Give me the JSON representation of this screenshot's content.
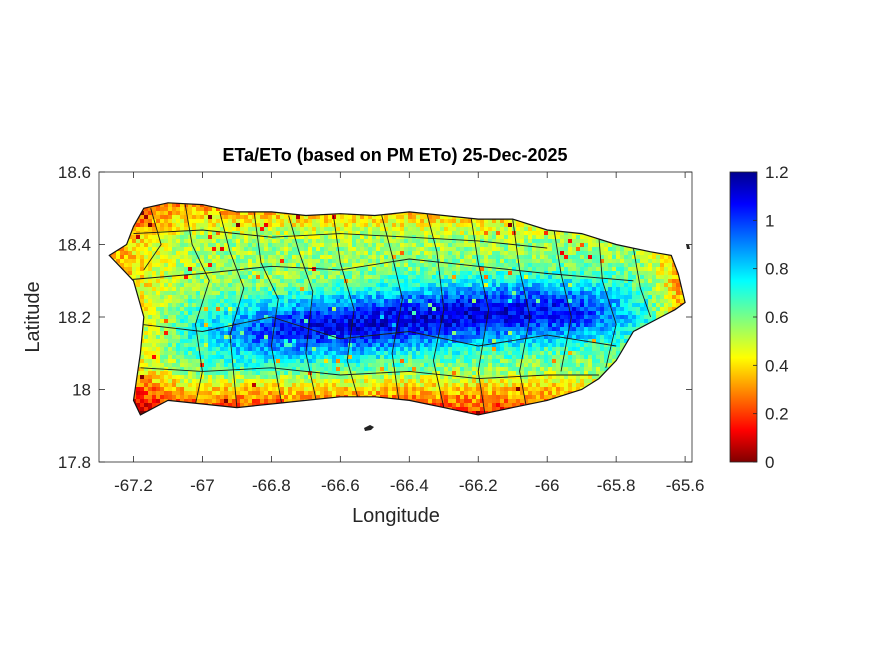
{
  "chart_data": {
    "type": "heatmap",
    "title": "ETa/ETo (based on PM ETo) 25-Dec-2025",
    "xlabel": "Longitude",
    "ylabel": "Latitude",
    "xlim": [
      -67.3,
      -65.58
    ],
    "ylim": [
      17.8,
      18.6
    ],
    "xticks": [
      -67.2,
      -67,
      -66.8,
      -66.6,
      -66.4,
      -66.2,
      -66,
      -65.8,
      -65.6
    ],
    "yticks": [
      17.8,
      18,
      18.2,
      18.4,
      18.6
    ],
    "xtick_labels": [
      "-67.2",
      "-67",
      "-66.8",
      "-66.6",
      "-66.4",
      "-66.2",
      "-66",
      "-65.8",
      "-65.6"
    ],
    "ytick_labels": [
      "17.8",
      "18",
      "18.2",
      "18.4",
      "18.6"
    ],
    "colorbar": {
      "colormap": "jet",
      "range": [
        0,
        1.2
      ],
      "ticks": [
        0,
        0.2,
        0.4,
        0.6,
        0.8,
        1,
        1.2
      ],
      "tick_labels": [
        "0",
        "0.2",
        "0.4",
        "0.6",
        "0.8",
        "1",
        "1.2"
      ]
    },
    "grid": false,
    "region_outline": [
      [
        -67.27,
        18.37
      ],
      [
        -67.22,
        18.4
      ],
      [
        -67.2,
        18.45
      ],
      [
        -67.17,
        18.5
      ],
      [
        -67.1,
        18.515
      ],
      [
        -67.0,
        18.51
      ],
      [
        -66.9,
        18.49
      ],
      [
        -66.8,
        18.49
      ],
      [
        -66.7,
        18.48
      ],
      [
        -66.6,
        18.485
      ],
      [
        -66.5,
        18.48
      ],
      [
        -66.4,
        18.49
      ],
      [
        -66.3,
        18.48
      ],
      [
        -66.2,
        18.47
      ],
      [
        -66.1,
        18.47
      ],
      [
        -66.0,
        18.44
      ],
      [
        -65.9,
        18.43
      ],
      [
        -65.8,
        18.4
      ],
      [
        -65.7,
        18.38
      ],
      [
        -65.64,
        18.37
      ],
      [
        -65.62,
        18.32
      ],
      [
        -65.6,
        18.24
      ],
      [
        -65.63,
        18.22
      ],
      [
        -65.67,
        18.2
      ],
      [
        -65.75,
        18.16
      ],
      [
        -65.8,
        18.08
      ],
      [
        -65.85,
        18.03
      ],
      [
        -65.9,
        18.0
      ],
      [
        -66.0,
        17.97
      ],
      [
        -66.1,
        17.95
      ],
      [
        -66.2,
        17.93
      ],
      [
        -66.3,
        17.95
      ],
      [
        -66.4,
        17.97
      ],
      [
        -66.5,
        17.98
      ],
      [
        -66.6,
        17.98
      ],
      [
        -66.7,
        17.97
      ],
      [
        -66.8,
        17.96
      ],
      [
        -66.9,
        17.95
      ],
      [
        -67.0,
        17.96
      ],
      [
        -67.1,
        17.97
      ],
      [
        -67.18,
        17.93
      ],
      [
        -67.2,
        17.97
      ],
      [
        -67.18,
        18.1
      ],
      [
        -67.17,
        18.2
      ],
      [
        -67.2,
        18.3
      ]
    ],
    "value_field": {
      "description_levels": [
        0.15,
        0.4,
        0.6,
        0.8,
        1.0,
        1.1
      ],
      "high_band": {
        "lon_range": [
          -66.9,
          -65.8
        ],
        "lat_center": 18.2,
        "peak": 1.1
      },
      "southern_coast": 0.35,
      "northern_coast": 0.6,
      "western_coast": 0.5
    }
  }
}
